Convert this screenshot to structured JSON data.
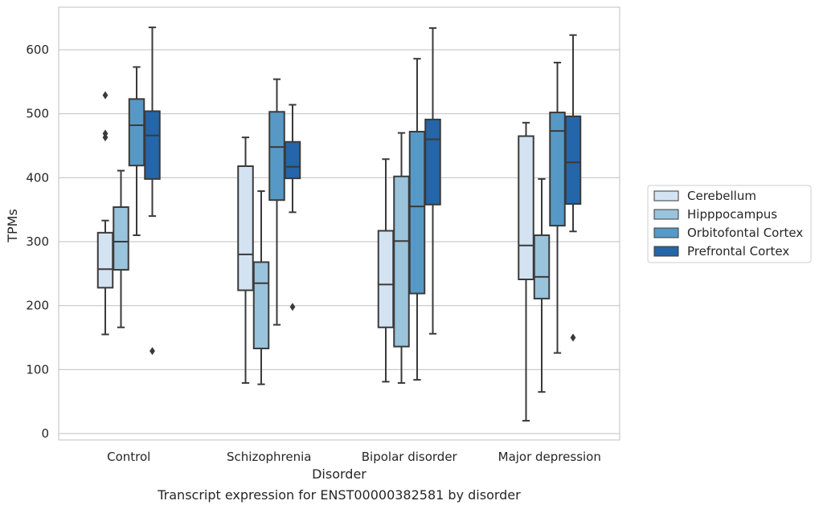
{
  "chart_data": {
    "type": "box",
    "caption": "Transcript expression for ENST00000382581 by disorder",
    "xlabel": "Disorder",
    "ylabel": "TPMs",
    "ylim": [
      -10,
      665
    ],
    "yticks": [
      0,
      100,
      200,
      300,
      400,
      500,
      600
    ],
    "grid": "horizontal",
    "legend_position": "right",
    "categories": [
      "Control",
      "Schizophrenia",
      "Bipolar disorder",
      "Major depression"
    ],
    "series": [
      {
        "name": "Cerebellum",
        "color": "#d4e3f2",
        "boxes": [
          {
            "whislo": 155,
            "q1": 228,
            "med": 257,
            "q3": 314,
            "whishi": 333,
            "fliers": [
              463,
              469,
              529
            ]
          },
          {
            "whislo": 79,
            "q1": 224,
            "med": 280,
            "q3": 418,
            "whishi": 463,
            "fliers": []
          },
          {
            "whislo": 81,
            "q1": 166,
            "med": 233,
            "q3": 317,
            "whishi": 429,
            "fliers": []
          },
          {
            "whislo": 20,
            "q1": 241,
            "med": 294,
            "q3": 465,
            "whishi": 486,
            "fliers": []
          }
        ]
      },
      {
        "name": "Hipppocampus",
        "color": "#9ac3dc",
        "boxes": [
          {
            "whislo": 166,
            "q1": 256,
            "med": 300,
            "q3": 354,
            "whishi": 411,
            "fliers": []
          },
          {
            "whislo": 77,
            "q1": 133,
            "med": 235,
            "q3": 268,
            "whishi": 379,
            "fliers": []
          },
          {
            "whislo": 79,
            "q1": 136,
            "med": 301,
            "q3": 402,
            "whishi": 470,
            "fliers": []
          },
          {
            "whislo": 65,
            "q1": 211,
            "med": 245,
            "q3": 310,
            "whishi": 398,
            "fliers": []
          }
        ]
      },
      {
        "name": "Orbitofontal Cortex",
        "color": "#5799c6",
        "boxes": [
          {
            "whislo": 310,
            "q1": 419,
            "med": 482,
            "q3": 523,
            "whishi": 573,
            "fliers": []
          },
          {
            "whislo": 170,
            "q1": 365,
            "med": 448,
            "q3": 503,
            "whishi": 554,
            "fliers": []
          },
          {
            "whislo": 84,
            "q1": 219,
            "med": 355,
            "q3": 472,
            "whishi": 586,
            "fliers": []
          },
          {
            "whislo": 126,
            "q1": 325,
            "med": 473,
            "q3": 502,
            "whishi": 580,
            "fliers": []
          }
        ]
      },
      {
        "name": "Prefrontal Cortex",
        "color": "#2565a9",
        "boxes": [
          {
            "whislo": 340,
            "q1": 398,
            "med": 466,
            "q3": 504,
            "whishi": 635,
            "fliers": [
              129
            ]
          },
          {
            "whislo": 346,
            "q1": 399,
            "med": 417,
            "q3": 456,
            "whishi": 514,
            "fliers": [
              198
            ]
          },
          {
            "whislo": 156,
            "q1": 358,
            "med": 460,
            "q3": 491,
            "whishi": 634,
            "fliers": []
          },
          {
            "whislo": 316,
            "q1": 359,
            "med": 424,
            "q3": 496,
            "whishi": 623,
            "fliers": [
              150
            ]
          }
        ]
      }
    ]
  }
}
